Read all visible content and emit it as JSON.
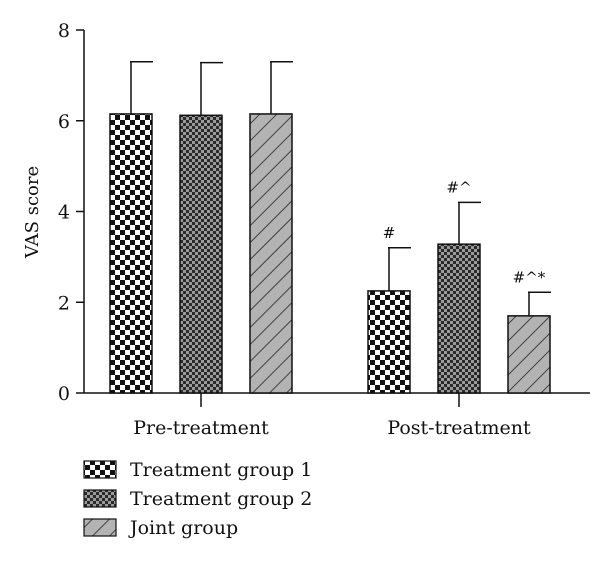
{
  "chart_data": {
    "type": "bar",
    "ylabel": "VAS score",
    "xlabel": "",
    "ylim": [
      0,
      8
    ],
    "yticks": [
      "0",
      "2",
      "4",
      "6",
      "8"
    ],
    "categories": [
      "Pre-treatment",
      "Post-treatment"
    ],
    "series": [
      {
        "name": "Treatment group 1",
        "pattern": "checker-large",
        "values": [
          6.15,
          2.25
        ],
        "errors": [
          1.15,
          0.95
        ],
        "annotations": [
          "",
          "#"
        ]
      },
      {
        "name": "Treatment group 2",
        "pattern": "checker-small",
        "values": [
          6.12,
          3.28
        ],
        "errors": [
          1.16,
          0.92
        ],
        "annotations": [
          "",
          "#^"
        ]
      },
      {
        "name": "Joint group",
        "pattern": "diagonal-hatch",
        "values": [
          6.15,
          1.7
        ],
        "errors": [
          1.15,
          0.52
        ],
        "annotations": [
          "",
          "#^*"
        ]
      }
    ],
    "legend_position": "bottom-left",
    "grid": false
  }
}
